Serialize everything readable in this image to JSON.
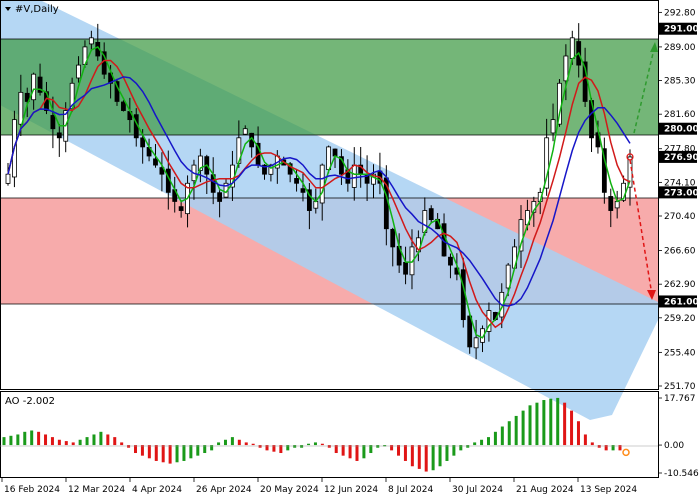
{
  "chart_title": "#V,Daily",
  "ao_label": "AO -2.002",
  "colors": {
    "channel": "#a8d0f2",
    "green_zone": "#3f9a44",
    "red_zone": "#f7a7a7",
    "ma_fast": "#11b311",
    "ma_mid": "#d11a1a",
    "ma_slow": "#1616c8",
    "ao_up": "#1a9a1a",
    "ao_down": "#e01515",
    "arrow_up": "#2f9a2f",
    "arrow_down": "#e01515"
  },
  "price_axis": {
    "ticks": [
      "292.80",
      "289.00",
      "285.30",
      "281.60",
      "277.80",
      "274.10",
      "270.40",
      "266.60",
      "262.90",
      "259.20",
      "255.40",
      "251.70"
    ],
    "highlighted": [
      {
        "label": "291.00",
        "value": 291.0
      },
      {
        "label": "280.00",
        "value": 280.0
      },
      {
        "label": "276.90",
        "value": 276.9
      },
      {
        "label": "273.00",
        "value": 273.0
      },
      {
        "label": "261.00",
        "value": 261.0
      }
    ]
  },
  "ao_axis": {
    "ticks": [
      "17.767",
      "0.00",
      "-10.546"
    ]
  },
  "date_axis": {
    "ticks": [
      "16 Feb 2024",
      "12 Mar 2024",
      "4 Apr 2024",
      "26 Apr 2024",
      "20 May 2024",
      "12 Jun 2024",
      "8 Jul 2024",
      "30 Jul 2024",
      "21 Aug 2024",
      "13 Sep 2024"
    ]
  },
  "levels": {
    "resistance_top": 291.0,
    "resistance_bottom": 280.0,
    "pivot": 273.0,
    "support": 261.0
  },
  "chart_data": {
    "type": "candlestick",
    "title": "#V,Daily",
    "ylim": [
      251.7,
      293.5
    ],
    "close_series": [
      275,
      281,
      284,
      283,
      286,
      284,
      282,
      280,
      279,
      282,
      285,
      287,
      289,
      290,
      288,
      286,
      285,
      283,
      282,
      281,
      279,
      278,
      277,
      276,
      275,
      273,
      272,
      271,
      274,
      276,
      277,
      275,
      273,
      272,
      274,
      276,
      279,
      280,
      278,
      276,
      275,
      276,
      277,
      276,
      275,
      274,
      273,
      271,
      272,
      276,
      278,
      277,
      275,
      274,
      276,
      275,
      274,
      275,
      274,
      269,
      267,
      265,
      264,
      267,
      268,
      271,
      270,
      269,
      266,
      265,
      264,
      259,
      256,
      257,
      258,
      260,
      259,
      262,
      265,
      267,
      270,
      271,
      272,
      273,
      279,
      281,
      285,
      288,
      290,
      287,
      283,
      279,
      278,
      273,
      271,
      272,
      274,
      276.9
    ],
    "ao_values": [
      3,
      3.5,
      4,
      5,
      5.5,
      5,
      4,
      3,
      2,
      1.5,
      1,
      2,
      3,
      4,
      5,
      4,
      3,
      1,
      -1,
      -3,
      -4,
      -5,
      -6,
      -6.5,
      -7,
      -6.5,
      -6,
      -5,
      -4,
      -3,
      -2,
      1,
      2,
      3,
      2,
      1,
      0.5,
      -1,
      -2,
      -2.5,
      -3,
      -2,
      -1,
      -1,
      0.5,
      1,
      0.5,
      -1,
      -3,
      -4,
      -5,
      -6,
      -5,
      -3,
      -1,
      -0.5,
      -2,
      -4,
      -6,
      -8,
      -9,
      -10,
      -9.5,
      -8,
      -6,
      -4,
      -2,
      -1,
      1,
      2,
      3,
      5,
      7,
      9,
      11,
      13,
      15,
      16,
      17,
      17.5,
      17.8,
      16,
      13,
      9,
      4,
      1,
      -1,
      -2,
      -2,
      -2.002
    ]
  }
}
